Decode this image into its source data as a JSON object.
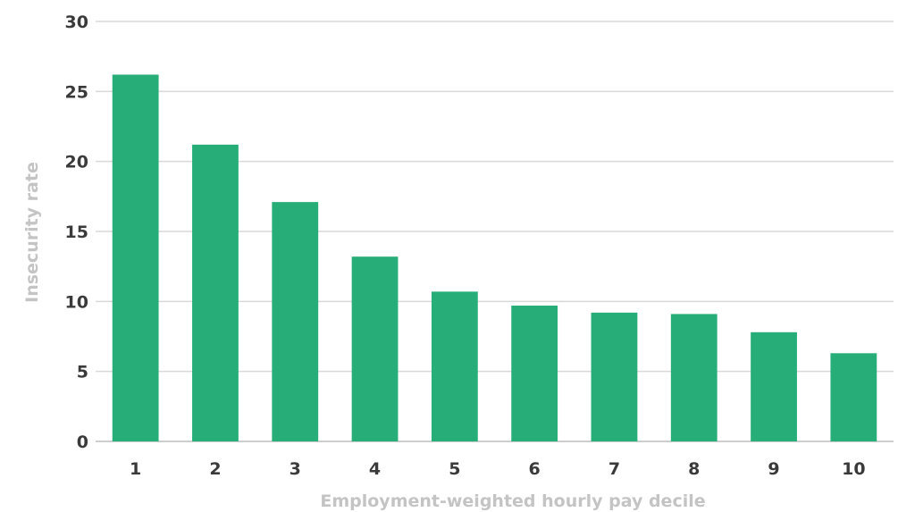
{
  "chart_data": {
    "type": "bar",
    "categories": [
      "1",
      "2",
      "3",
      "4",
      "5",
      "6",
      "7",
      "8",
      "9",
      "10"
    ],
    "values": [
      26.2,
      21.2,
      17.1,
      13.2,
      10.7,
      9.7,
      9.2,
      9.1,
      7.8,
      6.3
    ],
    "xlabel": "Employment-weighted hourly pay decile",
    "ylabel": "Insecurity rate",
    "ylim": [
      0,
      30
    ],
    "yticks": [
      0,
      5,
      10,
      15,
      20,
      25,
      30
    ],
    "grid": true,
    "bar_color": "#27ae78"
  }
}
